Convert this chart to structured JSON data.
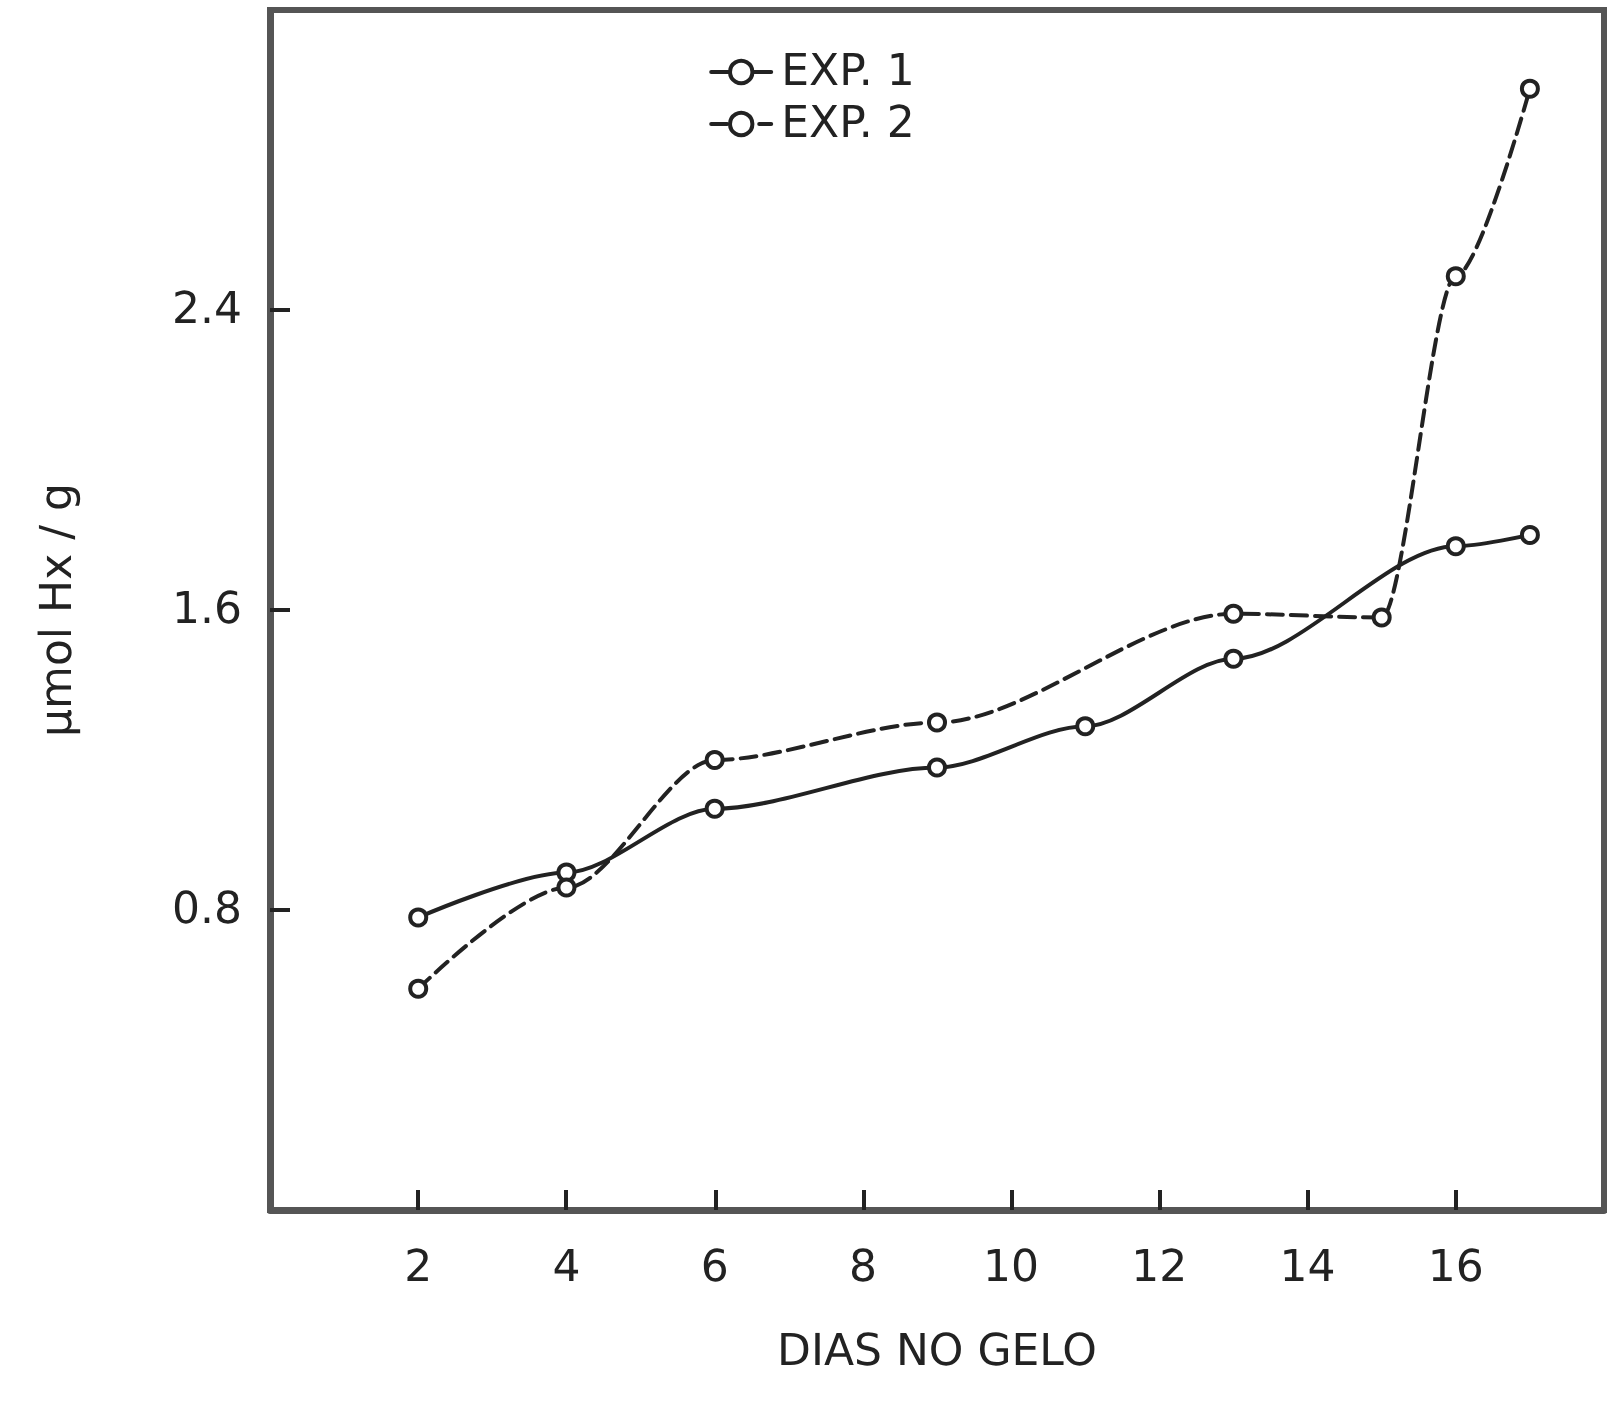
{
  "chart_data": {
    "type": "line",
    "xlabel": "DIAS NO GELO",
    "ylabel": "µmol Hx / g",
    "xlim": [
      0,
      18
    ],
    "xticks": [
      2,
      4,
      6,
      8,
      10,
      12,
      14,
      16
    ],
    "ylim": [
      0,
      3.2
    ],
    "yticks": [
      0.8,
      1.6,
      2.4
    ],
    "grid": false,
    "legend": "top",
    "marker": "circle",
    "series": [
      {
        "name": "EXP. 1",
        "color": "#222222",
        "line_style": "solid",
        "x": [
          2,
          4,
          6,
          9,
          11,
          13,
          16,
          17
        ],
        "values": [
          0.78,
          0.9,
          1.07,
          1.18,
          1.29,
          1.47,
          1.77,
          1.8
        ]
      },
      {
        "name": "EXP. 2",
        "color": "#222222",
        "line_style": "dashed",
        "x": [
          2,
          4,
          6,
          9,
          13,
          15,
          16,
          17
        ],
        "values": [
          0.59,
          0.86,
          1.2,
          1.3,
          1.59,
          1.58,
          2.49,
          2.99
        ]
      }
    ]
  }
}
